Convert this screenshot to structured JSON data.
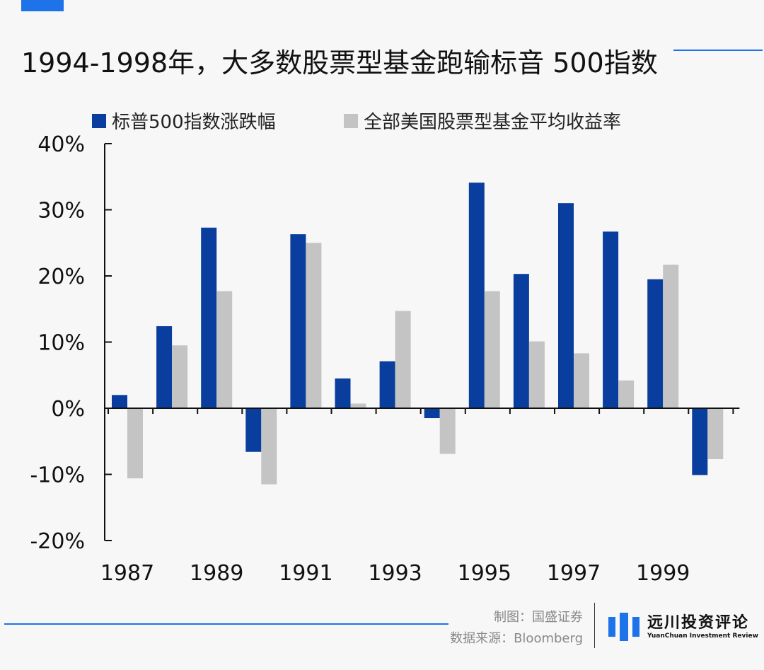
{
  "header": {
    "title": "1994-1998年，大多数股票型基金跑输标音 500指数"
  },
  "chart_data": {
    "type": "bar",
    "x": [
      1987,
      1988,
      1989,
      1990,
      1991,
      1992,
      1993,
      1994,
      1995,
      1996,
      1997,
      1998,
      1999,
      2000
    ],
    "x_tick_labels": [
      "1987",
      "1989",
      "1991",
      "1993",
      "1995",
      "1997",
      "1999"
    ],
    "y_tick_labels": [
      "40%",
      "30%",
      "20%",
      "10%",
      "0%",
      "-10%",
      "-20%"
    ],
    "ylim": [
      -20,
      40
    ],
    "grid": false,
    "legend_position": "top",
    "series": [
      {
        "name": "标普500指数涨跌幅",
        "color": "#0a3e9e",
        "values": [
          2.0,
          12.4,
          27.3,
          -6.6,
          26.3,
          4.5,
          7.1,
          -1.5,
          34.1,
          20.3,
          31.0,
          26.7,
          19.5,
          -10.1
        ]
      },
      {
        "name": "全部美国股票型基金平均收益率",
        "color": "#c4c4c4",
        "values": [
          -10.6,
          9.5,
          17.7,
          -11.5,
          25.0,
          0.7,
          14.7,
          -6.9,
          17.7,
          10.1,
          8.3,
          4.2,
          21.7,
          -7.7
        ]
      }
    ]
  },
  "footer": {
    "credit_chart": "制图：国盛证券",
    "credit_source": "数据来源：Bloomberg",
    "brand_name": "远川投资评论",
    "brand_sub": "YuanChuan Investment Review"
  }
}
